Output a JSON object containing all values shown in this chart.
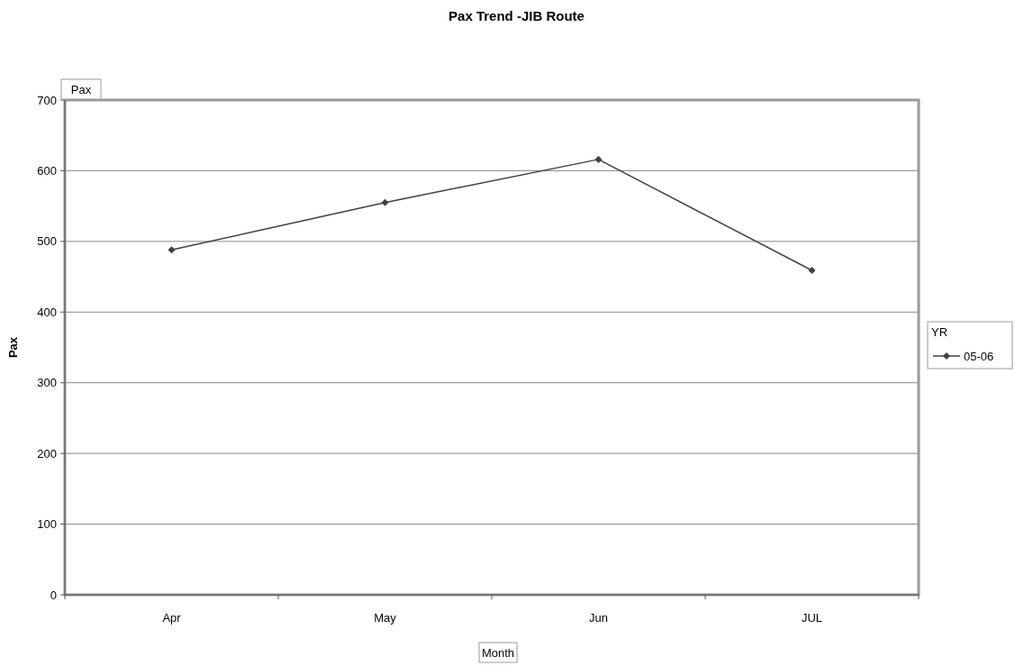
{
  "chart_data": {
    "type": "line",
    "title": "Pax Trend -JIB Route",
    "xlabel": "Month",
    "ylabel": "Pax",
    "legend_title": "YR",
    "annotations": [
      "Pax"
    ],
    "categories": [
      "Apr",
      "May",
      "Jun",
      "JUL"
    ],
    "series": [
      {
        "name": "05-06",
        "color": "#404040",
        "values": [
          488,
          555,
          616,
          459
        ]
      }
    ],
    "ylim": [
      0,
      700
    ],
    "yticks": [
      0,
      100,
      200,
      300,
      400,
      500,
      600,
      700
    ],
    "grid": "y",
    "legend": "right",
    "marker": "diamond",
    "line_style": "solid"
  }
}
